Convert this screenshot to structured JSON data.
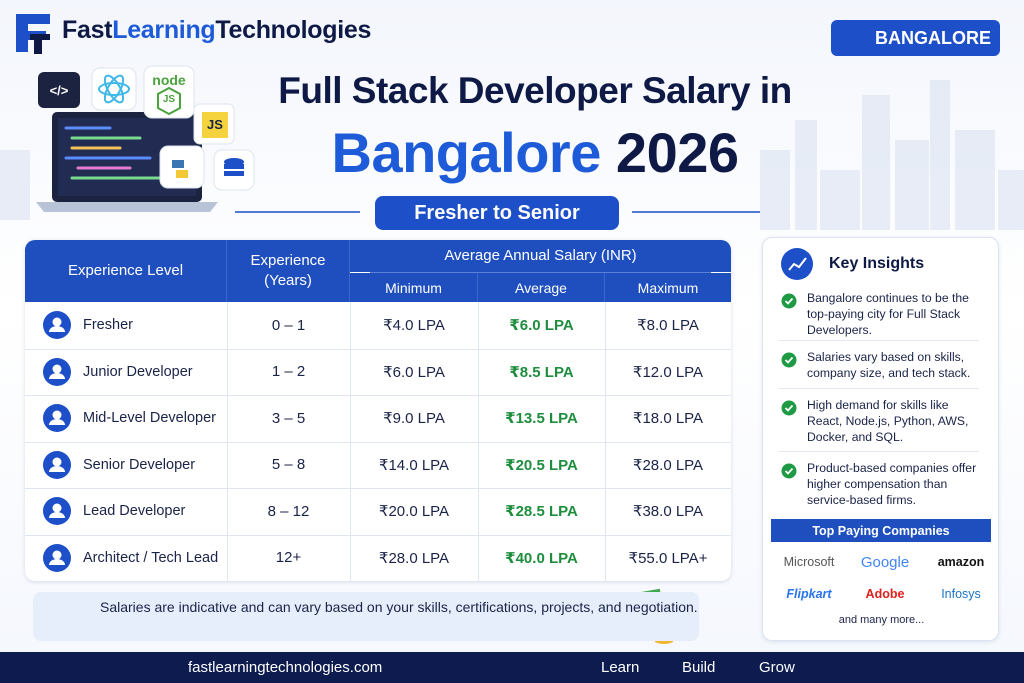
{
  "header": {
    "brand": [
      "Fast",
      "Learning",
      "Technologies"
    ],
    "city_badge": "BANGALORE"
  },
  "hero": {
    "title_line1": "Full Stack Developer Salary in",
    "title_city": "Bangalore",
    "title_year": "2026",
    "subtitle": "Fresher to Senior",
    "icons": {
      "code": "</>",
      "node": "node",
      "node_js": "JS",
      "js": "JS"
    }
  },
  "table": {
    "headers": {
      "level": "Experience Level",
      "years": "Experience (Years)",
      "salary": "Average Annual Salary (INR)",
      "sub": [
        "Minimum",
        "Average",
        "Maximum"
      ]
    },
    "rows": [
      [
        "Fresher",
        "0 – 1",
        "₹4.0 LPA",
        "₹6.0 LPA",
        "₹8.0 LPA"
      ],
      [
        "Junior Developer",
        "1 – 2",
        "₹6.0 LPA",
        "₹8.5 LPA",
        "₹12.0 LPA"
      ],
      [
        "Mid-Level Developer",
        "3 – 5",
        "₹9.0 LPA",
        "₹13.5 LPA",
        "₹18.0 LPA"
      ],
      [
        "Senior Developer",
        "5 – 8",
        "₹14.0 LPA",
        "₹20.5 LPA",
        "₹28.0 LPA"
      ],
      [
        "Lead Developer",
        "8 – 12",
        "₹20.0 LPA",
        "₹28.5 LPA",
        "₹38.0 LPA"
      ],
      [
        "Architect / Tech Lead",
        "12+",
        "₹28.0 LPA",
        "₹40.0 LPA",
        "₹55.0 LPA+"
      ]
    ]
  },
  "note": "Salaries are indicative and can vary based on your skills, certifications, projects, and negotiation.",
  "insights": {
    "title": "Key Insights",
    "items": [
      "Bangalore continues to be the top-paying city for Full Stack Developers.",
      "Salaries vary based on skills, company size, and tech stack.",
      "High demand for skills like React, Node.js, Python, AWS, Docker, and SQL.",
      "Product-based companies offer higher compensation than service-based firms."
    ],
    "companies_title": "Top Paying Companies",
    "companies": [
      "Microsoft",
      "Google",
      "amazon",
      "Flipkart",
      "Adobe",
      "Infosys"
    ],
    "more": "and many more..."
  },
  "footer": {
    "website": "fastlearningtechnologies.com",
    "tags": [
      "Learn",
      "Build",
      "Grow"
    ]
  }
}
